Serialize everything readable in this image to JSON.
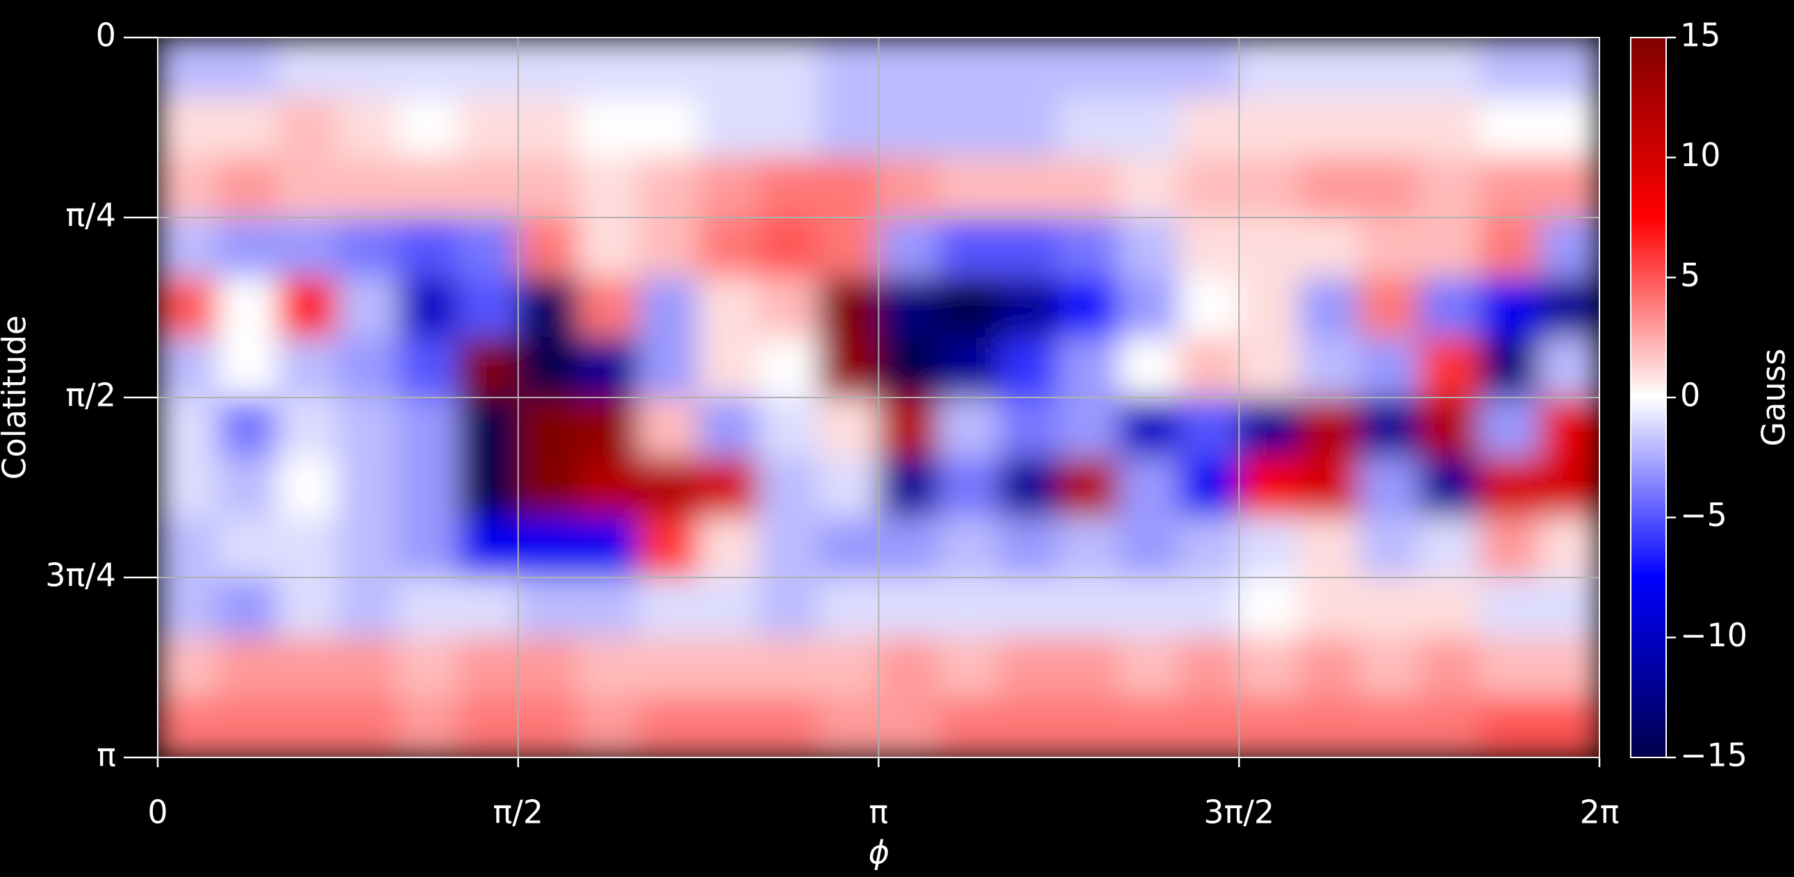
{
  "chart_data": {
    "type": "heatmap",
    "xlabel": "ϕ",
    "ylabel": "Colatitude",
    "xlim": [
      0,
      6.2832
    ],
    "ylim": [
      3.1416,
      0
    ],
    "xticks": [
      0,
      {
        "value": 1.5708,
        "label": "π/2"
      },
      {
        "value": 3.1416,
        "label": "π"
      },
      {
        "value": 4.7124,
        "label": "3π/2"
      },
      {
        "value": 6.2832,
        "label": "2π"
      }
    ],
    "yticks": [
      0,
      {
        "value": 0.7854,
        "label": "π/4"
      },
      {
        "value": 1.5708,
        "label": "π/2"
      },
      {
        "value": 2.3562,
        "label": "3π/4"
      },
      {
        "value": 3.1416,
        "label": "π"
      }
    ],
    "grid": true,
    "colormap": [
      "#00004c",
      "#0000ff",
      "#ffffff",
      "#ff0000",
      "#800000"
    ],
    "colorbar": {
      "label": "Gauss",
      "clim": [
        -15,
        15
      ],
      "ticks": [
        {
          "value": -15,
          "label": "−15"
        },
        {
          "value": -10,
          "label": "−10"
        },
        {
          "value": -5,
          "label": "−5"
        },
        0,
        5,
        10,
        15
      ]
    },
    "z": [
      [
        -2,
        -2,
        -1,
        -1,
        -1,
        -1,
        -1,
        -1,
        -1,
        -1,
        -1,
        -2,
        -2,
        -2,
        -2,
        -2,
        -2,
        -2,
        -1,
        -1,
        -1,
        -1,
        -2,
        -2
      ],
      [
        1,
        1,
        2,
        1,
        0,
        1,
        1,
        0,
        0,
        -1,
        -1,
        -2,
        -2,
        -2,
        -2,
        -1,
        -1,
        1,
        1,
        1,
        1,
        1,
        0,
        0
      ],
      [
        2,
        3,
        2,
        2,
        2,
        2,
        2,
        1,
        2,
        3,
        4,
        4,
        3,
        2,
        2,
        2,
        1,
        2,
        2,
        3,
        3,
        2,
        3,
        3
      ],
      [
        -2,
        -3,
        -3,
        -4,
        -5,
        -4,
        4,
        1,
        2,
        4,
        5,
        4,
        -3,
        -5,
        -5,
        -4,
        -2,
        1,
        1,
        1,
        2,
        2,
        4,
        -3
      ],
      [
        5,
        0,
        7,
        -2,
        -10,
        -5,
        -14,
        4,
        -3,
        1,
        2,
        15,
        -13,
        -15,
        -12,
        -7,
        -3,
        0,
        1,
        -3,
        4,
        -4,
        -8,
        -12
      ],
      [
        -2,
        0,
        -2,
        -3,
        -5,
        15,
        -15,
        -12,
        -3,
        1,
        0,
        14,
        -15,
        -12,
        -6,
        -3,
        0,
        2,
        1,
        -2,
        -3,
        6,
        -13,
        -2
      ],
      [
        -1,
        -4,
        -1,
        -2,
        -3,
        -15,
        15,
        14,
        2,
        -3,
        -1,
        1,
        12,
        -2,
        -4,
        -3,
        -10,
        -5,
        -12,
        12,
        -12,
        12,
        -3,
        9
      ],
      [
        -1,
        -2,
        0,
        -2,
        -3,
        -15,
        15,
        12,
        12,
        10,
        -2,
        -1,
        -12,
        -4,
        -12,
        12,
        -3,
        -8,
        8,
        10,
        -3,
        -12,
        10,
        10
      ],
      [
        -2,
        -1,
        -1,
        -2,
        -3,
        -8,
        -8,
        -8,
        6,
        1,
        -2,
        -3,
        -3,
        -2,
        -3,
        -2,
        -3,
        -2,
        -1,
        1,
        -2,
        -1,
        3,
        1
      ],
      [
        -2,
        -3,
        -1,
        -2,
        -1,
        -1,
        -2,
        -2,
        -1,
        -1,
        -2,
        -1,
        -1,
        -1,
        -1,
        -1,
        -1,
        -1,
        0,
        1,
        1,
        1,
        -1,
        -1
      ],
      [
        2,
        3,
        3,
        3,
        2,
        3,
        3,
        2,
        2,
        2,
        2,
        2,
        3,
        2,
        3,
        3,
        2,
        3,
        2,
        3,
        2,
        3,
        2,
        2
      ],
      [
        4,
        4,
        4,
        4,
        3,
        4,
        4,
        3,
        4,
        4,
        4,
        3,
        3,
        4,
        4,
        4,
        4,
        4,
        4,
        4,
        4,
        4,
        5,
        5
      ]
    ]
  }
}
